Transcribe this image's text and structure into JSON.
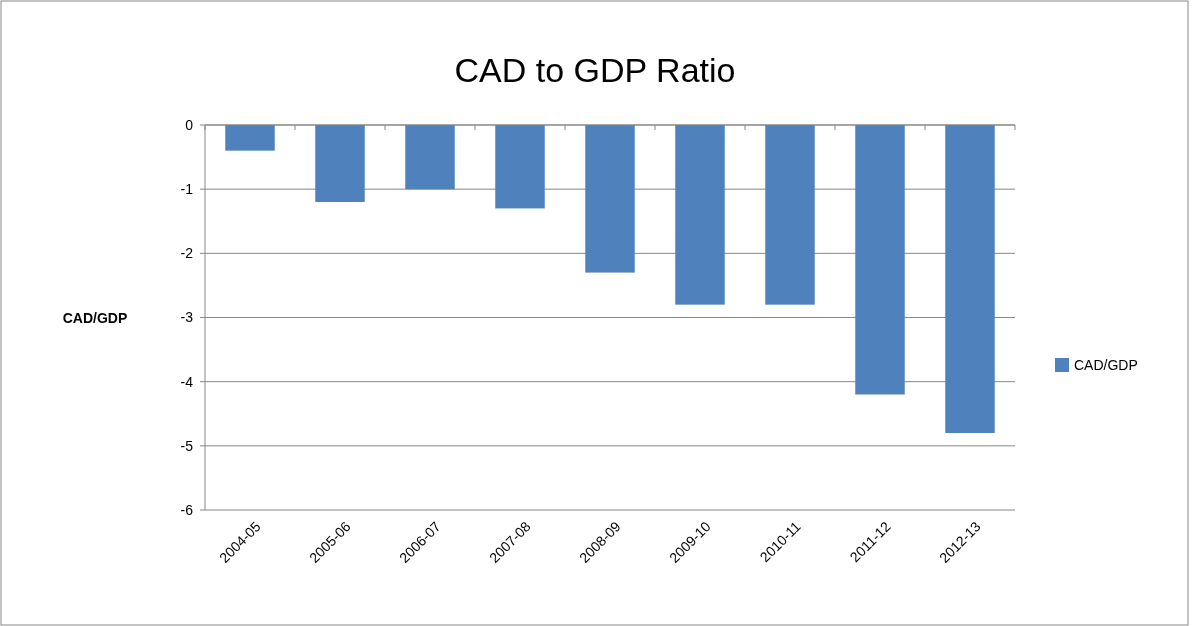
{
  "chart_data": {
    "type": "bar",
    "title": "CAD to GDP Ratio",
    "ylabel": "CAD/GDP",
    "categories": [
      "2004-05",
      "2005-06",
      "2006-07",
      "2007-08",
      "2008-09",
      "2009-10",
      "2010-11",
      "2011-12",
      "2012-13"
    ],
    "series": [
      {
        "name": "CAD/GDP",
        "color": "#4f81bd",
        "values": [
          -0.4,
          -1.2,
          -1.0,
          -1.3,
          -2.3,
          -2.8,
          -2.8,
          -4.2,
          -4.8
        ]
      }
    ],
    "ylim": [
      -6,
      0
    ],
    "yticks": [
      0,
      -1,
      -2,
      -3,
      -4,
      -5,
      -6
    ],
    "grid": "y",
    "legend": "right"
  }
}
